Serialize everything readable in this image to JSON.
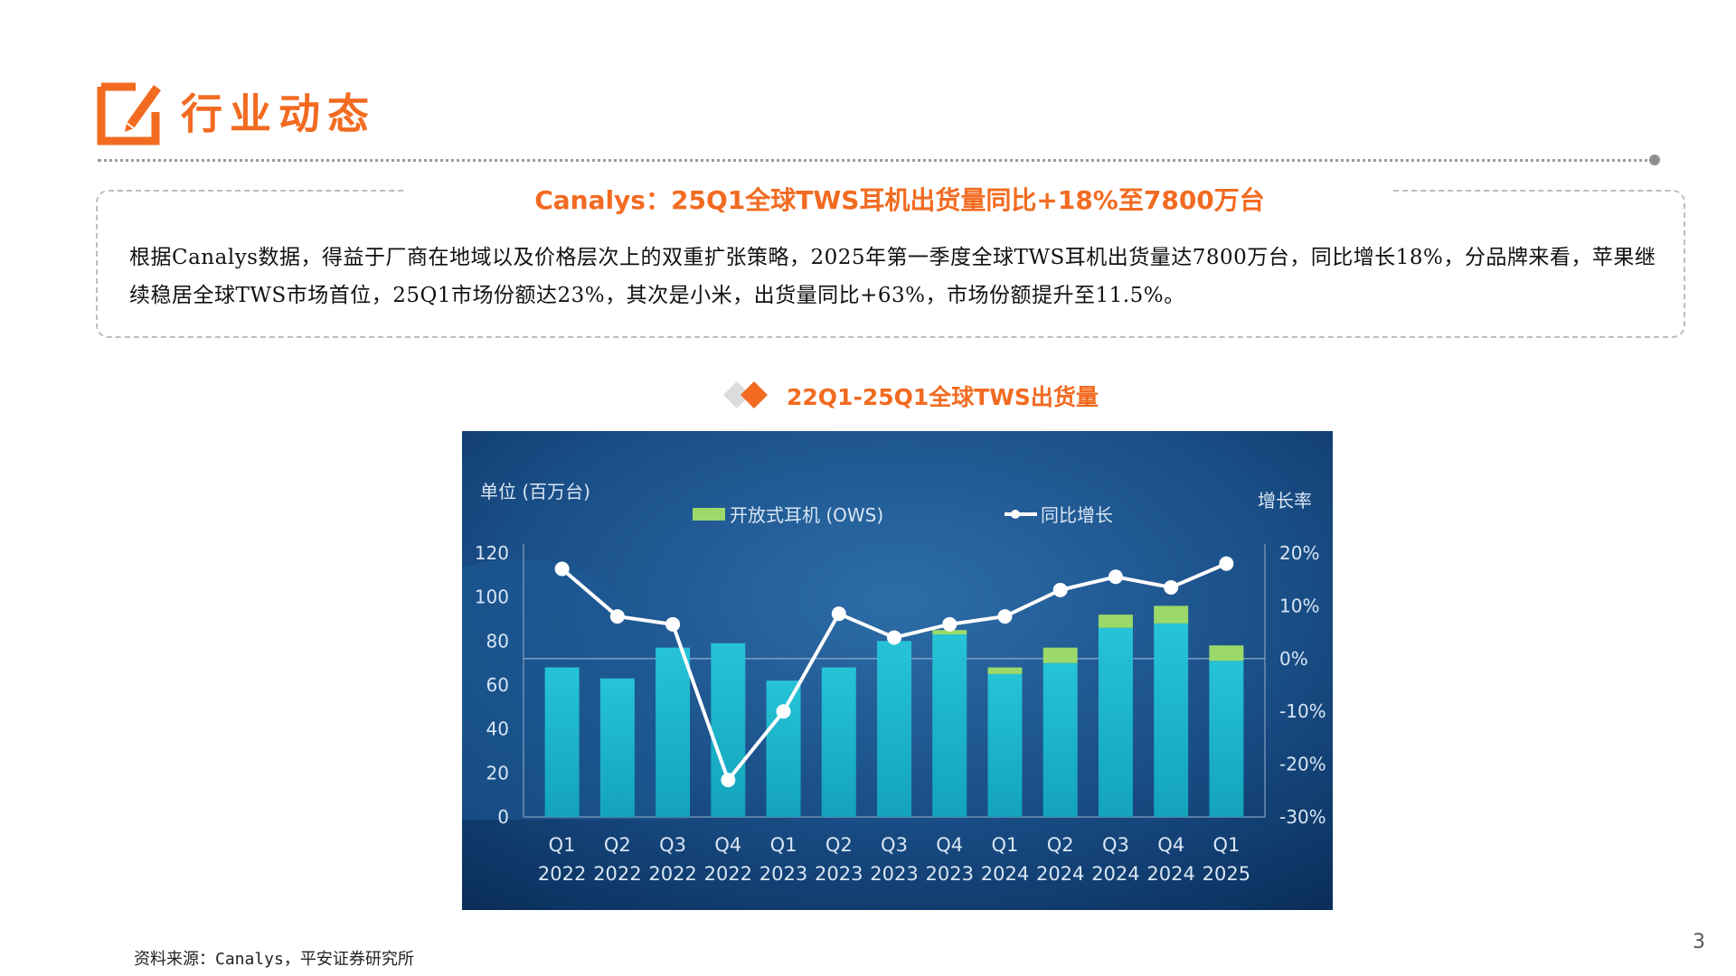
{
  "header": {
    "title": "行业动态",
    "accent": "#f26b21"
  },
  "box": {
    "title": "Canalys：25Q1全球TWS耳机出货量同比+18%至7800万台",
    "body": "根据Canalys数据，得益于厂商在地域以及价格层次上的双重扩张策略，2025年第一季度全球TWS耳机出货量达7800万台，同比增长18%，分品牌来看，苹果继续稳居全球TWS市场首位，25Q1市场份额达23%，其次是小米，出货量同比+63%，市场份额提升至11.5%。"
  },
  "chart_heading": "22Q1-25Q1全球TWS出货量",
  "chart_data": {
    "type": "bar",
    "unit_label": "单位 (百万台)",
    "right_axis_label": "增长率",
    "categories": [
      [
        "Q1",
        "2022"
      ],
      [
        "Q2",
        "2022"
      ],
      [
        "Q3",
        "2022"
      ],
      [
        "Q4",
        "2022"
      ],
      [
        "Q1",
        "2023"
      ],
      [
        "Q2",
        "2023"
      ],
      [
        "Q3",
        "2023"
      ],
      [
        "Q4",
        "2023"
      ],
      [
        "Q1",
        "2024"
      ],
      [
        "Q2",
        "2024"
      ],
      [
        "Q3",
        "2024"
      ],
      [
        "Q4",
        "2024"
      ],
      [
        "Q1",
        "2025"
      ]
    ],
    "legend": [
      "开放式耳机 (OWS)",
      "同比增长"
    ],
    "series": [
      {
        "name": "",
        "type": "bar",
        "stack": "shipments",
        "color": "#1cb3c7",
        "values": [
          68,
          63,
          77,
          79,
          62,
          68,
          80,
          83,
          65,
          70,
          86,
          88,
          71
        ]
      },
      {
        "name": "开放式耳机 (OWS)",
        "type": "bar",
        "stack": "shipments",
        "color": "#9bd96a",
        "values": [
          0,
          0,
          0,
          0,
          0,
          0,
          0,
          2,
          3,
          7,
          6,
          8,
          7
        ]
      },
      {
        "name": "同比增长",
        "type": "line",
        "axis": "right",
        "color": "#ffffff",
        "values": [
          17,
          8,
          6.5,
          -23,
          -10,
          8.5,
          4,
          6.5,
          8,
          13,
          15.5,
          13.5,
          18
        ]
      }
    ],
    "y_left": {
      "range": [
        0,
        120
      ],
      "ticks": [
        "0",
        "20",
        "40",
        "60",
        "80",
        "100",
        "120"
      ]
    },
    "y_right": {
      "range": [
        -30,
        20
      ],
      "ticks": [
        "-30%",
        "-20%",
        "-10%",
        "0%",
        "10%",
        "20%"
      ]
    },
    "colors": {
      "background": "#0c3563",
      "text": "#d8e6f4"
    }
  },
  "footnote": "资料来源：Canalys，平安证券研究所",
  "page_number": "3"
}
